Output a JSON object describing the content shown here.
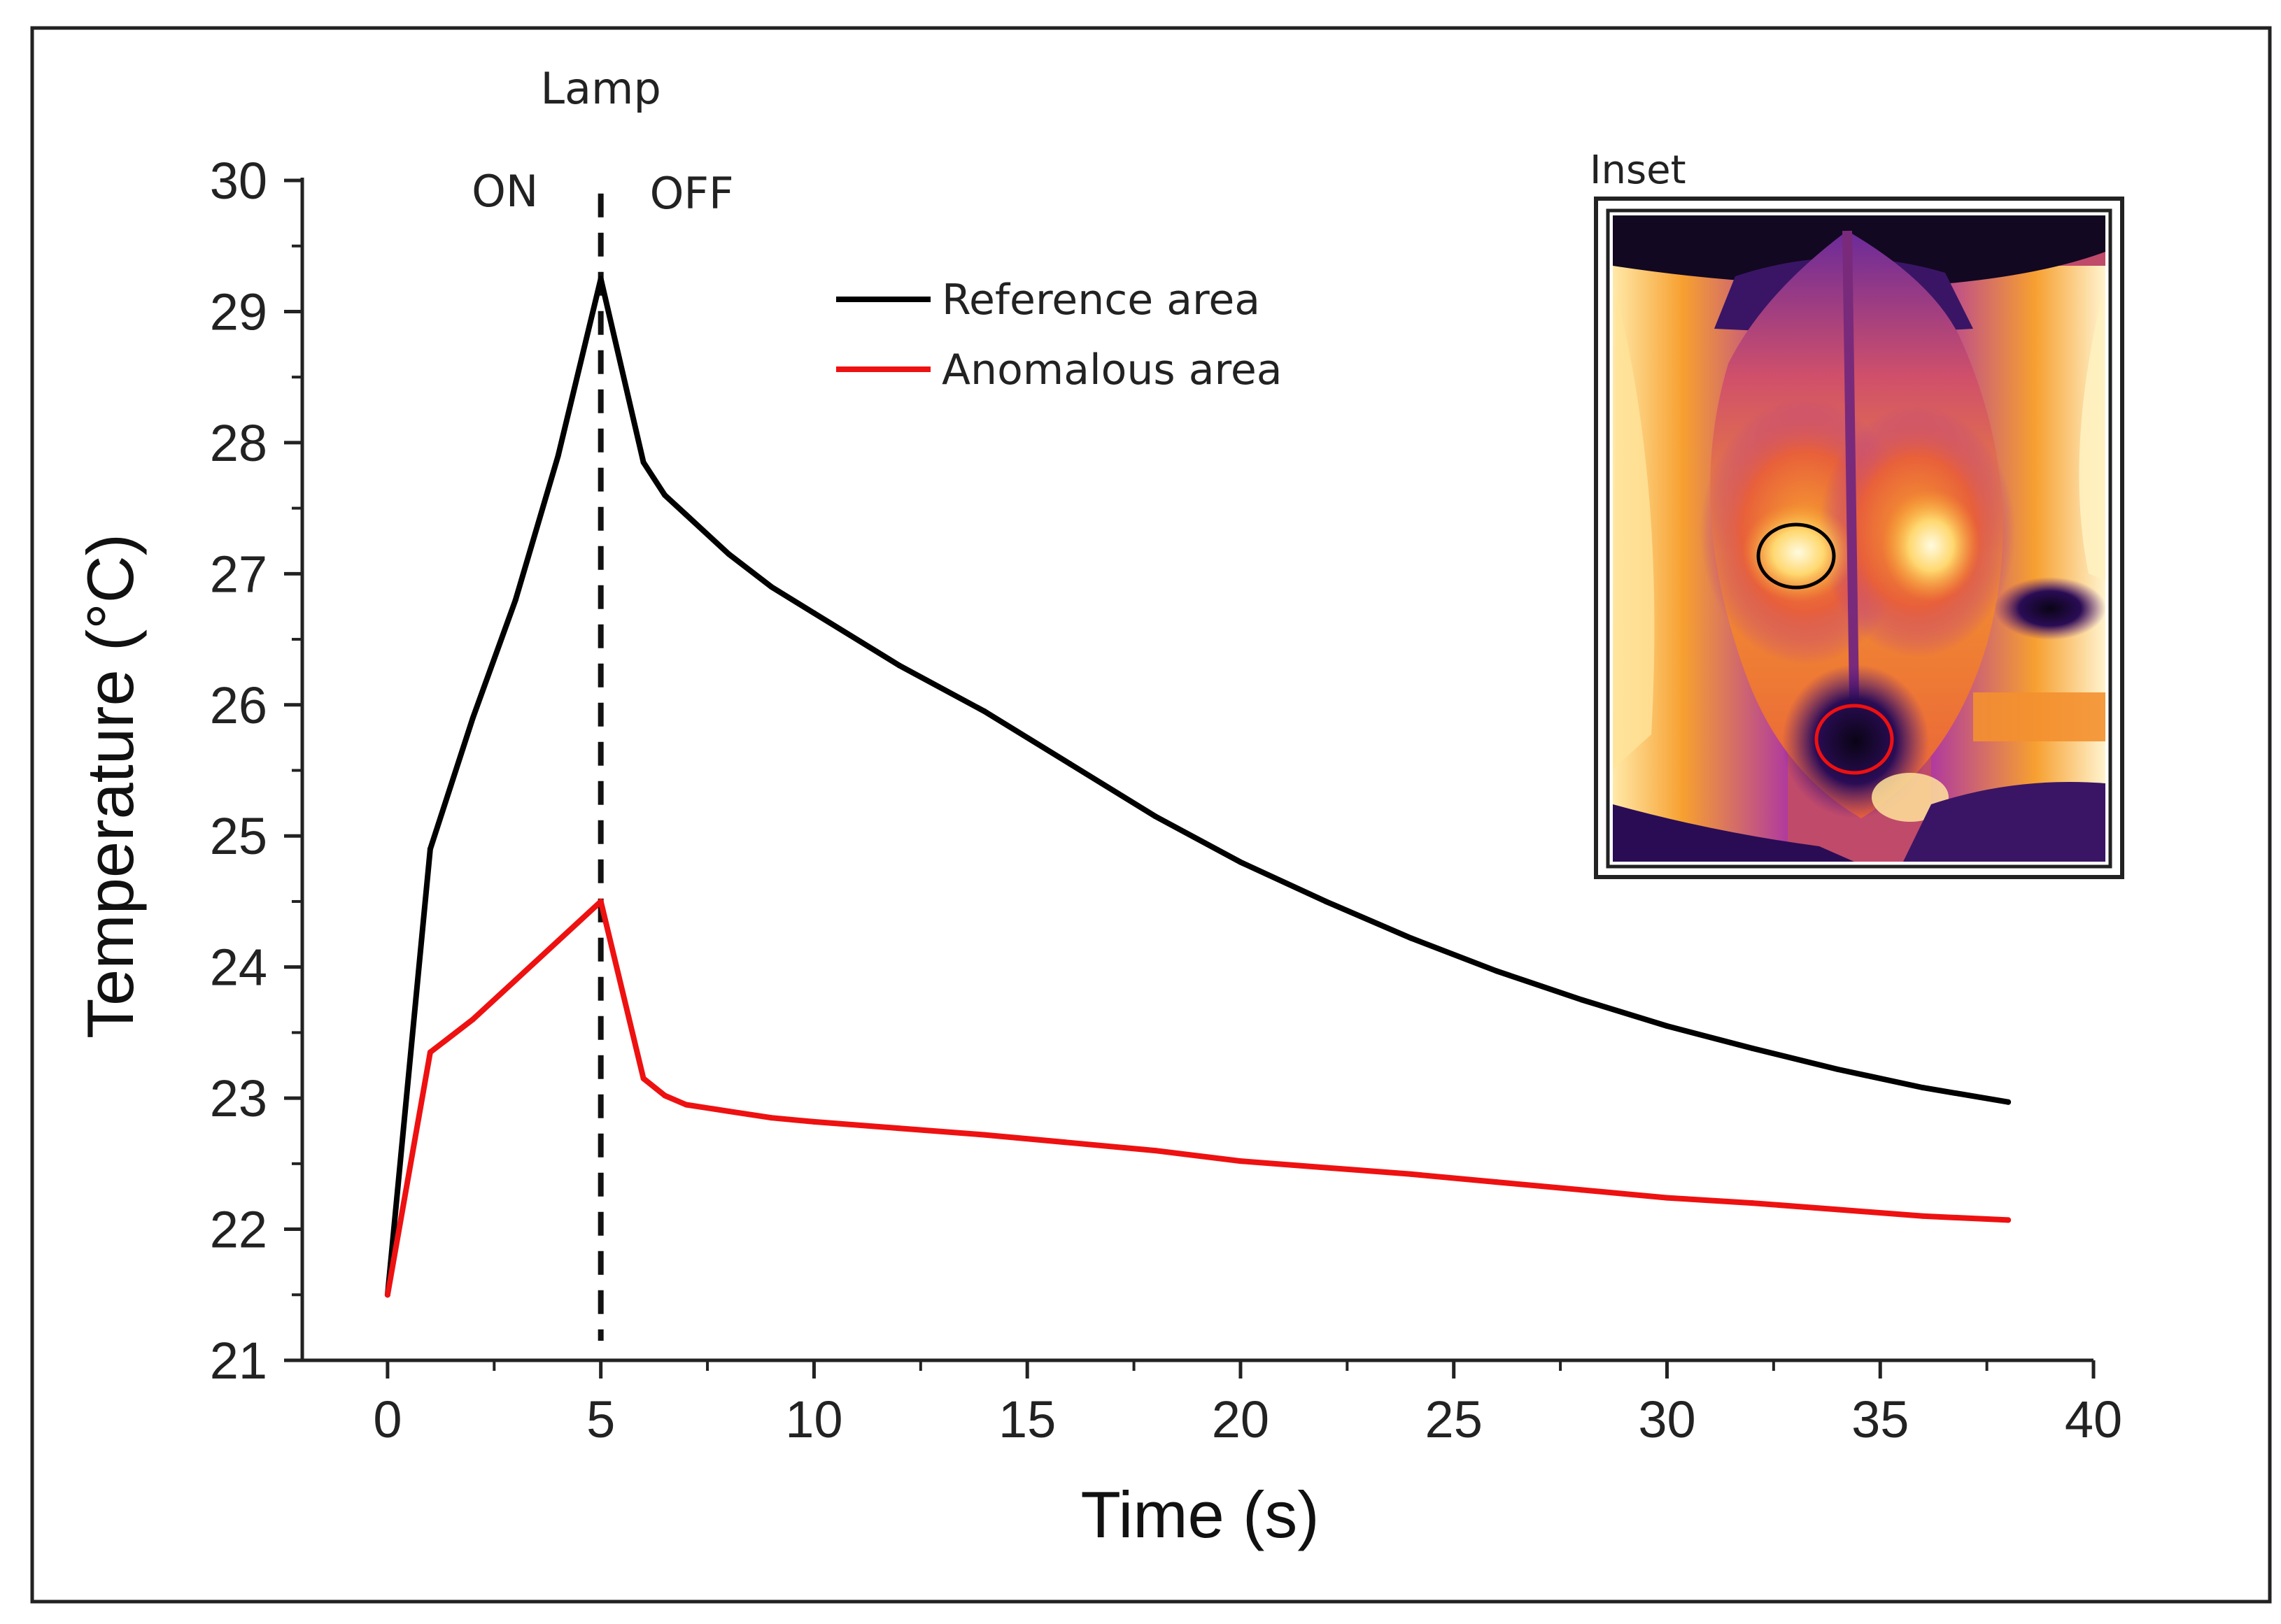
{
  "chart_data": {
    "type": "line",
    "xlabel": "Time (s)",
    "ylabel": "Temperature (°C)",
    "xlim": [
      -2,
      40
    ],
    "ylim": [
      21,
      30
    ],
    "xticks": [
      0,
      5,
      10,
      15,
      20,
      25,
      30,
      35,
      40
    ],
    "yticks": [
      21,
      22,
      23,
      24,
      25,
      26,
      27,
      28,
      29,
      30
    ],
    "grid": false,
    "legend_position": "upper-center",
    "series": [
      {
        "name": "Reference area",
        "color": "#000000",
        "x": [
          0,
          1,
          2,
          3,
          4,
          5,
          6,
          6.5,
          7,
          8,
          9,
          10,
          12,
          14,
          16,
          18,
          20,
          22,
          24,
          26,
          28,
          30,
          32,
          34,
          36,
          38
        ],
        "y": [
          21.5,
          24.9,
          25.9,
          26.8,
          27.9,
          29.25,
          27.85,
          27.6,
          27.45,
          27.15,
          26.9,
          26.7,
          26.3,
          25.95,
          25.55,
          25.15,
          24.8,
          24.5,
          24.22,
          23.97,
          23.75,
          23.55,
          23.38,
          23.22,
          23.08,
          22.97
        ]
      },
      {
        "name": "Anomalous area",
        "color": "#ee1111",
        "x": [
          0,
          1,
          2,
          3,
          4,
          5,
          6,
          6.5,
          7,
          8,
          9,
          10,
          12,
          14,
          16,
          18,
          20,
          22,
          24,
          26,
          28,
          30,
          32,
          34,
          36,
          38
        ],
        "y": [
          21.5,
          23.35,
          23.6,
          23.9,
          24.2,
          24.5,
          23.15,
          23.02,
          22.95,
          22.9,
          22.85,
          22.82,
          22.77,
          22.72,
          22.66,
          22.6,
          22.52,
          22.47,
          22.42,
          22.36,
          22.3,
          22.24,
          22.2,
          22.15,
          22.1,
          22.07
        ]
      }
    ],
    "annotations": {
      "lamp_label": "Lamp",
      "on_label": "ON",
      "off_label": "OFF",
      "lamp_switch_x": 5
    },
    "inset": {
      "title": "Inset",
      "colormap": [
        "#1a0a33",
        "#5a1a8a",
        "#b03a9e",
        "#e8603a",
        "#f7a030",
        "#ffd870",
        "#fffbe0"
      ],
      "reference_marker_color": "#000000",
      "anomalous_marker_color": "#ee1111"
    }
  }
}
